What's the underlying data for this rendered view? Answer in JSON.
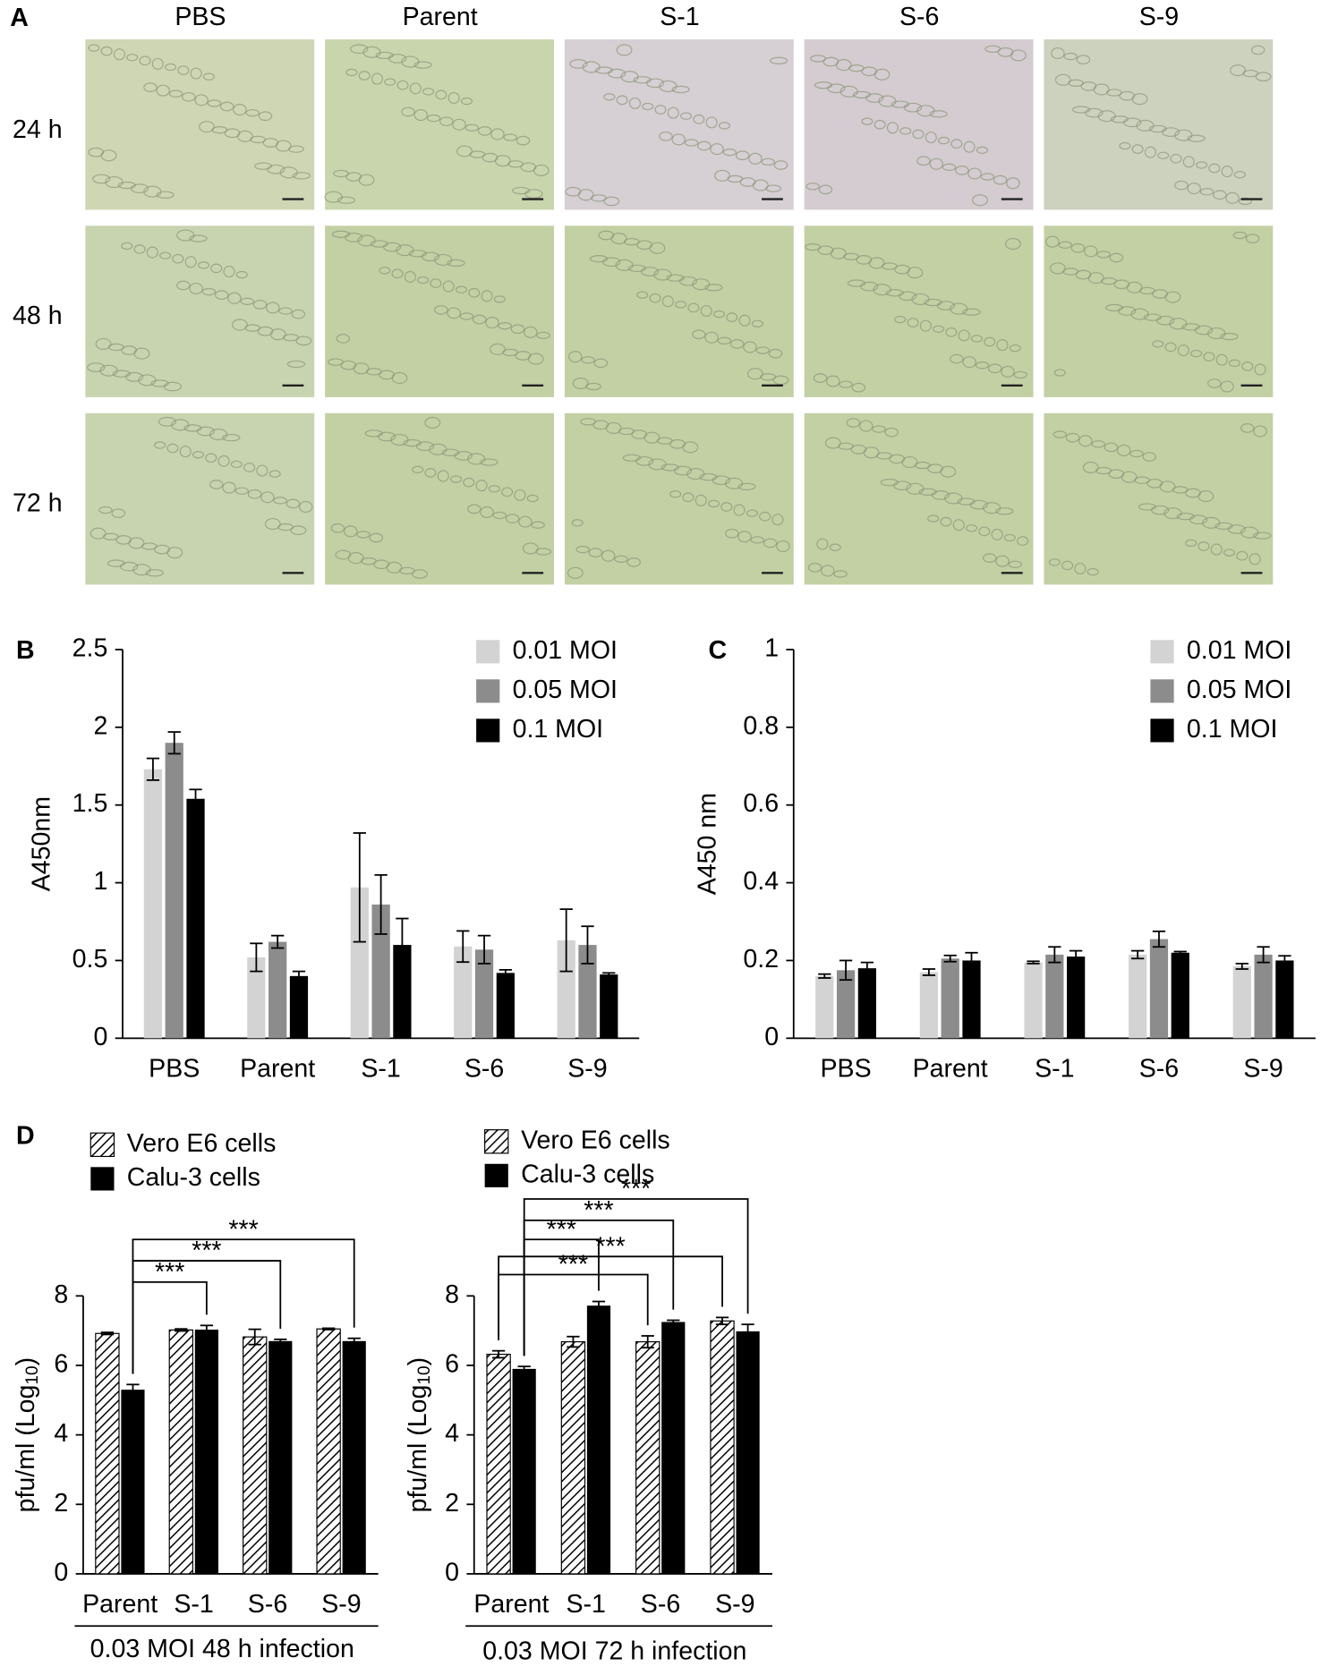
{
  "panel_a": {
    "label": "A",
    "columns": [
      "PBS",
      "Parent",
      "S-1",
      "S-6",
      "S-9"
    ],
    "rows": [
      "24 h",
      "48 h",
      "72 h"
    ]
  },
  "chart_data": [
    {
      "type": "bar",
      "panel_label": "B",
      "ylabel": "A450nm",
      "categories": [
        "PBS",
        "Parent",
        "S-1",
        "S-6",
        "S-9"
      ],
      "series": [
        {
          "name": "0.01 MOI",
          "color": "#d3d3d3",
          "values": [
            1.73,
            0.52,
            0.97,
            0.59,
            0.63
          ],
          "errors": [
            0.07,
            0.09,
            0.35,
            0.1,
            0.2
          ]
        },
        {
          "name": "0.05 MOI",
          "color": "#8c8c8c",
          "values": [
            1.9,
            0.62,
            0.86,
            0.57,
            0.6
          ],
          "errors": [
            0.07,
            0.04,
            0.19,
            0.09,
            0.12
          ]
        },
        {
          "name": "0.1 MOI",
          "color": "#000000",
          "values": [
            1.54,
            0.4,
            0.6,
            0.42,
            0.41
          ],
          "errors": [
            0.06,
            0.03,
            0.17,
            0.02,
            0.01
          ]
        }
      ],
      "ylim": [
        0,
        2.5
      ],
      "yticks": [
        0,
        0.5,
        1,
        1.5,
        2,
        2.5
      ],
      "legend": "upper right"
    },
    {
      "type": "bar",
      "panel_label": "C",
      "ylabel": "A450 nm",
      "categories": [
        "PBS",
        "Parent",
        "S-1",
        "S-6",
        "S-9"
      ],
      "series": [
        {
          "name": "0.01 MOI",
          "color": "#d3d3d3",
          "values": [
            0.16,
            0.17,
            0.195,
            0.215,
            0.185
          ],
          "errors": [
            0.005,
            0.008,
            0.003,
            0.01,
            0.007
          ]
        },
        {
          "name": "0.05 MOI",
          "color": "#8c8c8c",
          "values": [
            0.175,
            0.205,
            0.215,
            0.255,
            0.215
          ],
          "errors": [
            0.025,
            0.008,
            0.02,
            0.02,
            0.02
          ]
        },
        {
          "name": "0.1 MOI",
          "color": "#000000",
          "values": [
            0.18,
            0.2,
            0.21,
            0.22,
            0.2
          ],
          "errors": [
            0.015,
            0.02,
            0.015,
            0.003,
            0.012
          ]
        }
      ],
      "ylim": [
        0,
        1
      ],
      "yticks": [
        0,
        0.2,
        0.4,
        0.6,
        0.8,
        1
      ],
      "legend": "upper right"
    },
    {
      "type": "bar",
      "panel_label": "D",
      "ylabel": "pfu/ml (Log",
      "ylabel_sub": "10",
      "ylabel_end": ")",
      "xlabel": "0.03 MOI 48 h infection",
      "categories": [
        "Parent",
        "S-1",
        "S-6",
        "S-9"
      ],
      "series": [
        {
          "name": "Vero E6 cells",
          "color": "hatch",
          "values": [
            6.92,
            7.02,
            6.82,
            7.05
          ],
          "errors": [
            0.03,
            0.03,
            0.22,
            0.02
          ]
        },
        {
          "name": "Calu-3 cells",
          "color": "#000000",
          "values": [
            5.3,
            7.03,
            6.7,
            6.7
          ],
          "errors": [
            0.15,
            0.12,
            0.05,
            0.08
          ]
        }
      ],
      "ylim": [
        0,
        8
      ],
      "yticks": [
        0,
        2,
        4,
        6,
        8
      ],
      "legend": "above",
      "annotations": [
        "***",
        "***",
        "***"
      ]
    },
    {
      "type": "bar",
      "ylabel": "pfu/ml (Log",
      "ylabel_sub": "10",
      "ylabel_end": ")",
      "xlabel": "0.03 MOI 72 h infection",
      "categories": [
        "Parent",
        "S-1",
        "S-6",
        "S-9"
      ],
      "series": [
        {
          "name": "Vero E6 cells",
          "color": "hatch",
          "values": [
            6.32,
            6.68,
            6.68,
            7.28
          ],
          "errors": [
            0.1,
            0.15,
            0.17,
            0.1
          ]
        },
        {
          "name": "Calu-3 cells",
          "color": "#000000",
          "values": [
            5.9,
            7.72,
            7.25,
            6.98
          ],
          "errors": [
            0.07,
            0.12,
            0.05,
            0.2
          ]
        }
      ],
      "ylim": [
        0,
        8
      ],
      "yticks": [
        0,
        2,
        4,
        6,
        8
      ],
      "legend": "above",
      "annotations": [
        "***",
        "***",
        "***",
        "***",
        "***"
      ]
    }
  ]
}
